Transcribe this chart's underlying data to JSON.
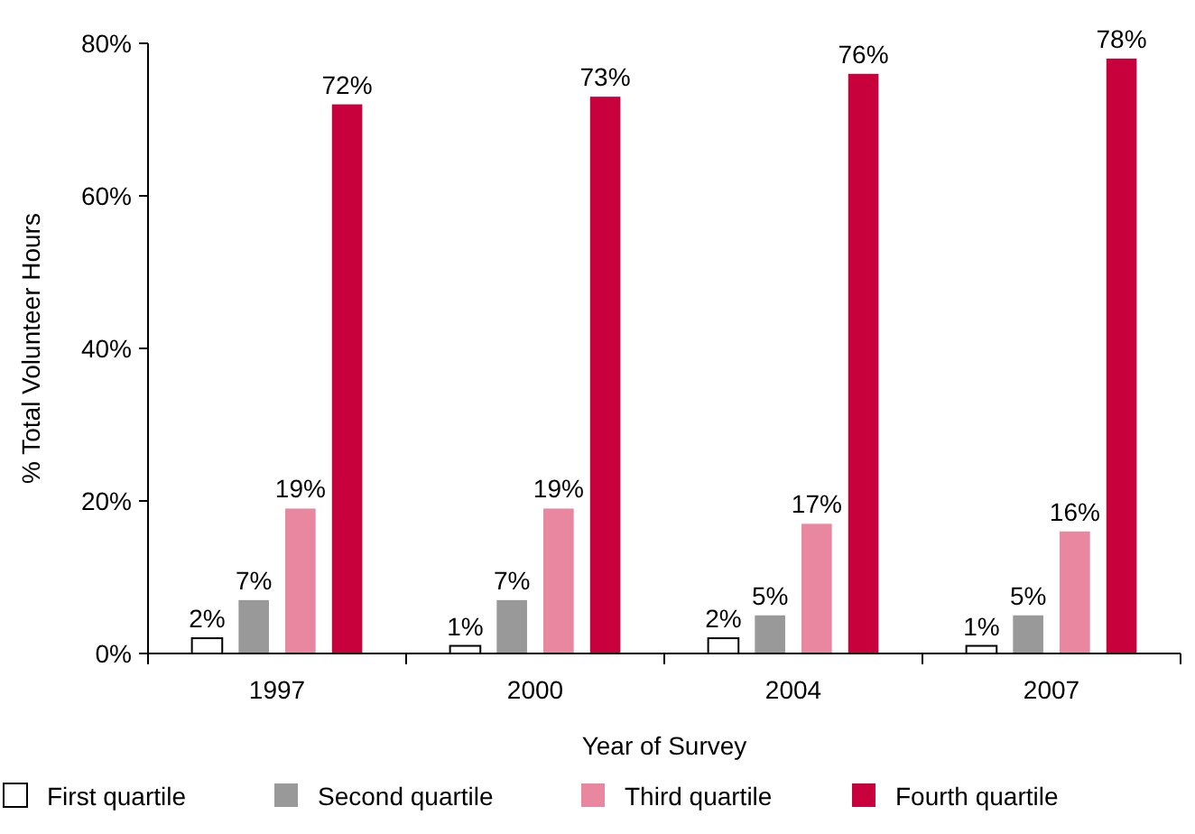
{
  "chart_data": {
    "type": "bar",
    "xlabel": "Year of Survey",
    "ylabel": "% Total Volunteer Hours",
    "categories": [
      "1997",
      "2000",
      "2004",
      "2007"
    ],
    "series": [
      {
        "name": "First quartile",
        "color": "#ffffff",
        "values": [
          2,
          1,
          2,
          1
        ],
        "value_labels": [
          "2%",
          "1%",
          "2%",
          "1%"
        ]
      },
      {
        "name": "Second quartile",
        "color": "#999999",
        "values": [
          7,
          7,
          5,
          5
        ],
        "value_labels": [
          "7%",
          "7%",
          "5%",
          "5%"
        ]
      },
      {
        "name": "Third quartile",
        "color": "#e8879f",
        "values": [
          19,
          19,
          17,
          16
        ],
        "value_labels": [
          "19%",
          "19%",
          "17%",
          "16%"
        ]
      },
      {
        "name": "Fourth quartile",
        "color": "#c8003c",
        "values": [
          72,
          73,
          76,
          78
        ],
        "value_labels": [
          "72%",
          "73%",
          "76%",
          "78%"
        ]
      }
    ],
    "ylim": [
      0,
      80
    ],
    "yticks": [
      {
        "value": 0,
        "label": "0%"
      },
      {
        "value": 20,
        "label": "20%"
      },
      {
        "value": 40,
        "label": "40%"
      },
      {
        "value": 60,
        "label": "60%"
      },
      {
        "value": 80,
        "label": "80%"
      }
    ],
    "grid": false,
    "legend": "bottom"
  }
}
